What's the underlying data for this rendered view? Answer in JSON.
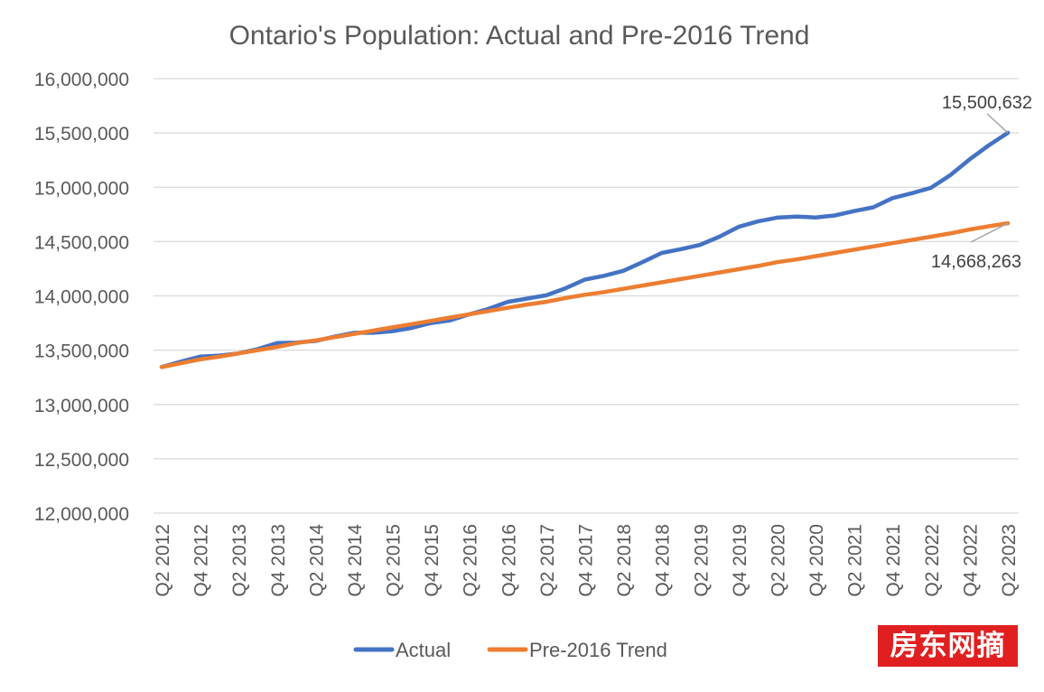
{
  "watermark": "房东网摘",
  "chart_data": {
    "type": "line",
    "title": "Ontario's Population: Actual and Pre-2016 Trend",
    "xlabel": "",
    "ylabel": "",
    "ylim": [
      12000000,
      16000000
    ],
    "yticks": [
      12000000,
      12500000,
      13000000,
      13500000,
      14000000,
      14500000,
      15000000,
      15500000,
      16000000
    ],
    "ytick_labels": [
      "12,000,000",
      "12,500,000",
      "13,000,000",
      "13,500,000",
      "14,000,000",
      "14,500,000",
      "15,000,000",
      "15,500,000",
      "16,000,000"
    ],
    "grid": true,
    "legend_position": "bottom",
    "categories": [
      "Q2 2012",
      "Q3 2012",
      "Q4 2012",
      "Q1 2013",
      "Q2 2013",
      "Q3 2013",
      "Q4 2013",
      "Q1 2014",
      "Q2 2014",
      "Q3 2014",
      "Q4 2014",
      "Q1 2015",
      "Q2 2015",
      "Q3 2015",
      "Q4 2015",
      "Q1 2016",
      "Q2 2016",
      "Q3 2016",
      "Q4 2016",
      "Q1 2017",
      "Q2 2017",
      "Q3 2017",
      "Q4 2017",
      "Q1 2018",
      "Q2 2018",
      "Q3 2018",
      "Q4 2018",
      "Q1 2019",
      "Q2 2019",
      "Q3 2019",
      "Q4 2019",
      "Q1 2020",
      "Q2 2020",
      "Q3 2020",
      "Q4 2020",
      "Q1 2021",
      "Q2 2021",
      "Q3 2021",
      "Q4 2021",
      "Q1 2022",
      "Q2 2022",
      "Q3 2022",
      "Q4 2022",
      "Q1 2023",
      "Q2 2023"
    ],
    "shown_category_labels": [
      "Q2 2012",
      "Q4 2012",
      "Q2 2013",
      "Q4 2013",
      "Q2 2014",
      "Q4 2014",
      "Q2 2015",
      "Q4 2015",
      "Q2 2016",
      "Q4 2016",
      "Q2 2017",
      "Q4 2017",
      "Q2 2018",
      "Q4 2018",
      "Q2 2019",
      "Q4 2019",
      "Q2 2020",
      "Q4 2020",
      "Q2 2021",
      "Q4 2021",
      "Q2 2022",
      "Q4 2022",
      "Q2 2023"
    ],
    "series": [
      {
        "name": "Actual",
        "color": "#4472c4",
        "values": [
          13345000,
          13395000,
          13440000,
          13450000,
          13470000,
          13510000,
          13565000,
          13570000,
          13585000,
          13625000,
          13660000,
          13660000,
          13675000,
          13705000,
          13750000,
          13775000,
          13830000,
          13880000,
          13945000,
          13975000,
          14005000,
          14070000,
          14150000,
          14185000,
          14230000,
          14310000,
          14395000,
          14430000,
          14470000,
          14545000,
          14635000,
          14685000,
          14720000,
          14730000,
          14722000,
          14740000,
          14780000,
          14815000,
          14900000,
          14945000,
          14995000,
          15110000,
          15255000,
          15385000,
          15500632
        ]
      },
      {
        "name": "Pre-2016 Trend",
        "color": "#ed7d31",
        "values": [
          13345000,
          13380000,
          13415000,
          13440000,
          13470000,
          13500000,
          13530000,
          13565000,
          13590000,
          13620000,
          13650000,
          13680000,
          13710000,
          13740000,
          13770000,
          13800000,
          13830000,
          13860000,
          13890000,
          13920000,
          13945000,
          13980000,
          14010000,
          14035000,
          14065000,
          14095000,
          14125000,
          14155000,
          14185000,
          14215000,
          14245000,
          14275000,
          14310000,
          14335000,
          14365000,
          14395000,
          14425000,
          14455000,
          14485000,
          14515000,
          14545000,
          14575000,
          14610000,
          14640000,
          14668263
        ]
      }
    ],
    "annotations": [
      {
        "text": "15,500,632",
        "series": "Actual",
        "index": 44,
        "anchor": "above-left"
      },
      {
        "text": "14,668,263",
        "series": "Pre-2016 Trend",
        "index": 44,
        "anchor": "below-left"
      }
    ]
  }
}
